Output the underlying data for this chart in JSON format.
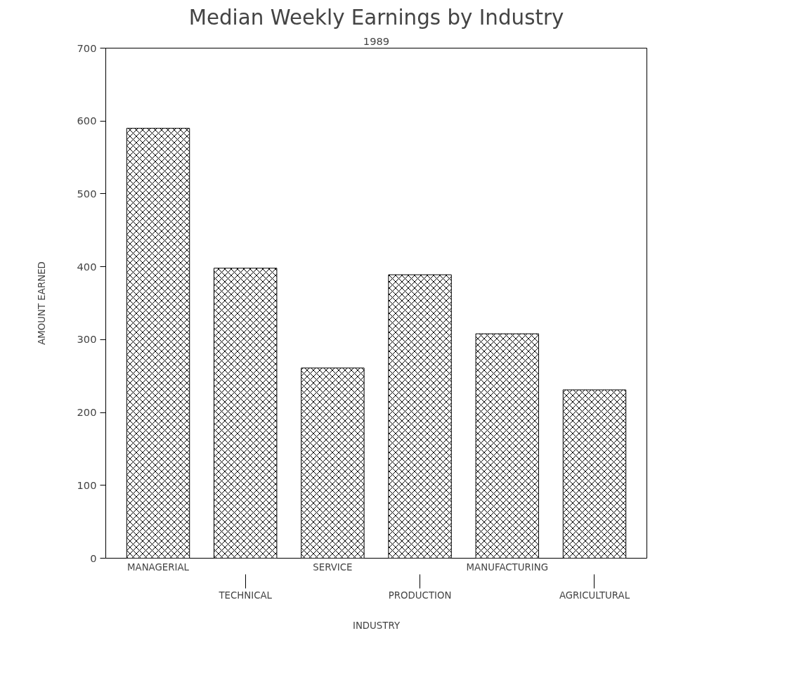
{
  "chart_data": {
    "type": "bar",
    "title": "Median Weekly Earnings by Industry",
    "subtitle": "1989",
    "xlabel": "INDUSTRY",
    "ylabel": "AMOUNT EARNED",
    "categories": [
      "MANAGERIAL",
      "TECHNICAL",
      "SERVICE",
      "PRODUCTION",
      "MANUFACTURING",
      "AGRICULTURAL"
    ],
    "values": [
      590,
      398,
      261,
      389,
      308,
      231
    ],
    "color": "#000000",
    "ylim": [
      0,
      700
    ],
    "yticks": [
      0,
      100,
      200,
      300,
      400,
      500,
      600,
      700
    ],
    "grid": false
  }
}
